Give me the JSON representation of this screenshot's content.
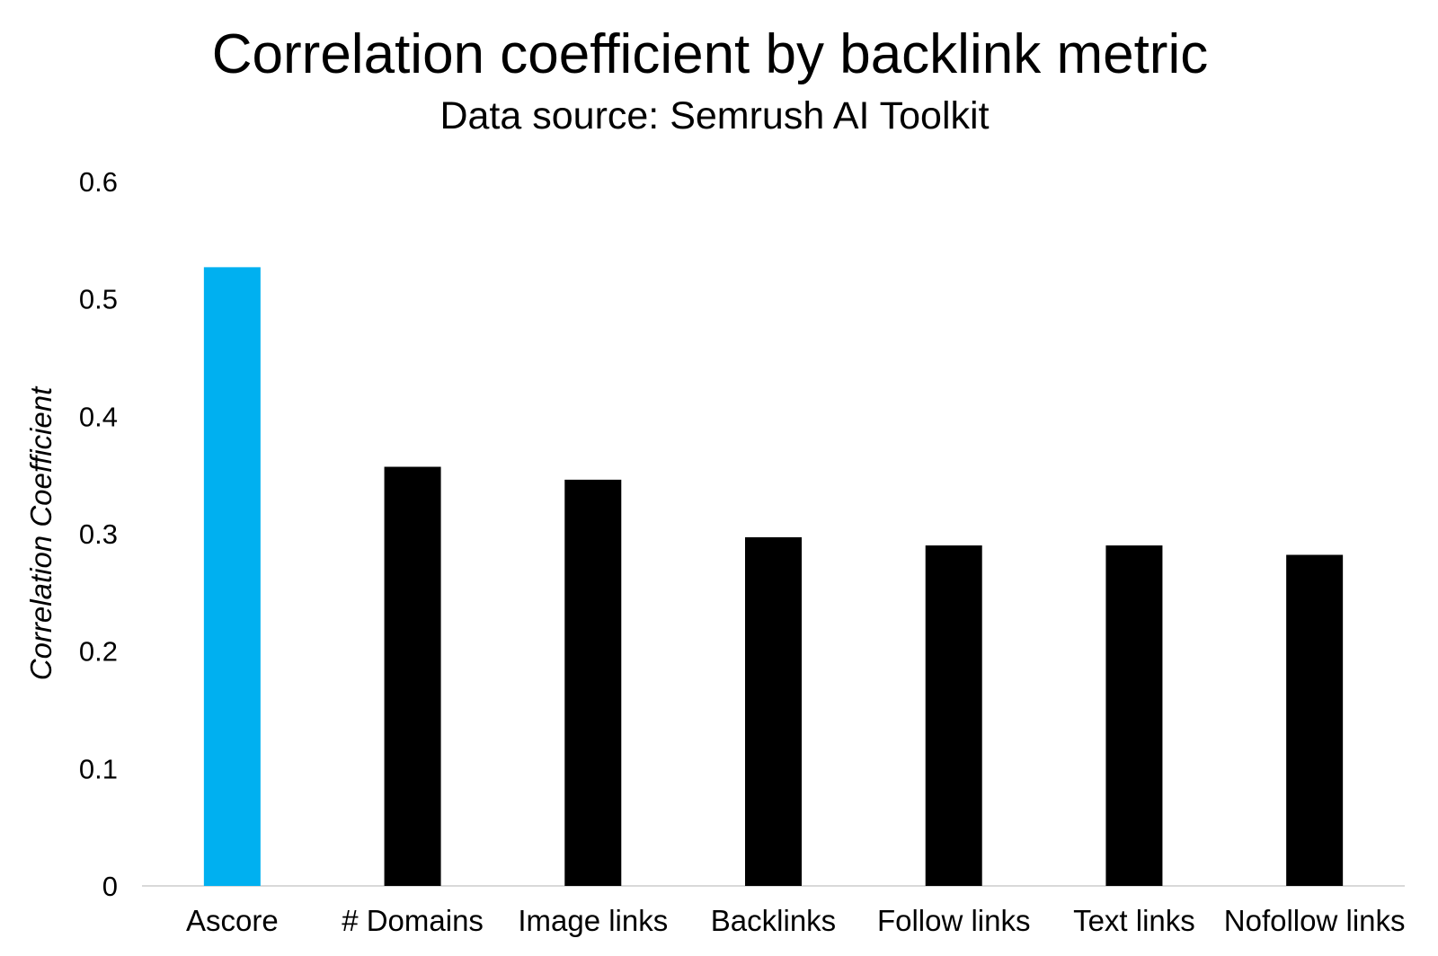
{
  "header": {
    "title": "Correlation coefficient by backlink metric",
    "subtitle": "Data source: Semrush AI Toolkit"
  },
  "chart_data": {
    "type": "bar",
    "title": "Correlation coefficient by backlink metric",
    "subtitle": "Data source: Semrush AI Toolkit",
    "categories": [
      "Ascore",
      "# Domains",
      "Image links",
      "Backlinks",
      "Follow links",
      "Text links",
      "Nofollow links"
    ],
    "values": [
      0.527,
      0.357,
      0.346,
      0.297,
      0.29,
      0.29,
      0.282
    ],
    "bar_colors": [
      "#00B0F0",
      "#000000",
      "#000000",
      "#000000",
      "#000000",
      "#000000",
      "#000000"
    ],
    "highlight_category": "Ascore",
    "highlight_color": "#00B0F0",
    "default_bar_color": "#000000",
    "xlabel": "",
    "ylabel": "Correlation Coefficient",
    "ylim": [
      0,
      0.6
    ],
    "yticks": [
      0,
      0.1,
      0.2,
      0.3,
      0.4,
      0.5,
      0.6
    ],
    "ytick_labels": [
      "0",
      "0.1",
      "0.2",
      "0.3",
      "0.4",
      "0.5",
      "0.6"
    ],
    "grid": false,
    "legend": "none",
    "axis_line_color": "#d9d9d9",
    "text_color": "#000000"
  }
}
